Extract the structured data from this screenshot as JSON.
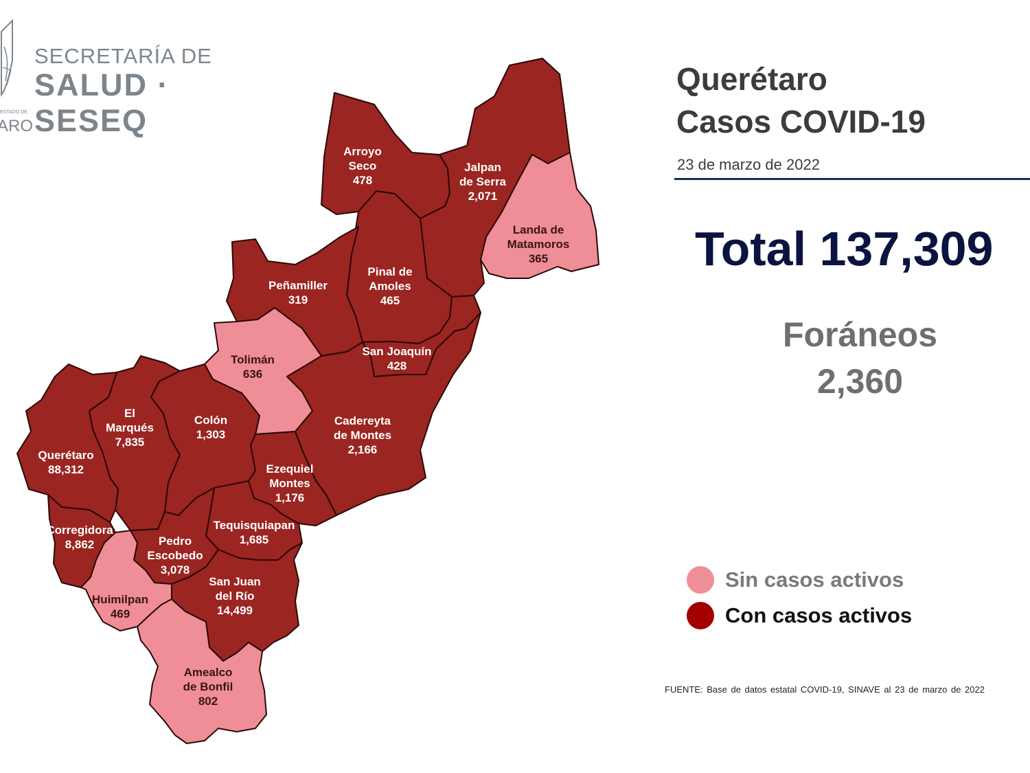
{
  "header": {
    "line1": "SECRETARÍA DE",
    "line2": "SALUD · SESEQ",
    "edo_text": "ESTADO DE",
    "state_fragment": "ARO"
  },
  "title": {
    "line1": "Querétaro",
    "line2": "Casos COVID-19",
    "date": "23 de marzo de 2022"
  },
  "total": "Total 137,309",
  "foraneos": {
    "label": "Foráneos",
    "value": "2,360"
  },
  "legend": {
    "sin": {
      "label": "Sin casos activos",
      "color": "#ef8e96"
    },
    "con": {
      "label": "Con casos activos",
      "color": "#a30000"
    }
  },
  "source": "FUENTE: Base de datos estatal COVID-19, SINAVE al 23 de marzo de 2022",
  "colors": {
    "con_fill": "#9b2521",
    "sin_fill": "#ef8e96",
    "border": "#2a0808"
  },
  "municipalities": [
    {
      "id": "arroyo-seco",
      "name_lines": [
        "Arroyo",
        "Seco"
      ],
      "cases": "478",
      "status": "con"
    },
    {
      "id": "jalpan",
      "name_lines": [
        "Jalpan",
        "de Serra"
      ],
      "cases": "2,071",
      "status": "con"
    },
    {
      "id": "landa",
      "name_lines": [
        "Landa de",
        "Matamoros"
      ],
      "cases": "365",
      "status": "sin"
    },
    {
      "id": "pinal",
      "name_lines": [
        "Pinal de",
        "Amoles"
      ],
      "cases": "465",
      "status": "con"
    },
    {
      "id": "penamiller",
      "name_lines": [
        "Peñamiller"
      ],
      "cases": "319",
      "status": "con"
    },
    {
      "id": "san-joaquin",
      "name_lines": [
        "San Joaquín"
      ],
      "cases": "428",
      "status": "con"
    },
    {
      "id": "toliman",
      "name_lines": [
        "Tolimán"
      ],
      "cases": "636",
      "status": "sin"
    },
    {
      "id": "cadereyta",
      "name_lines": [
        "Cadereyta",
        "de Montes"
      ],
      "cases": "2,166",
      "status": "con"
    },
    {
      "id": "el-marques",
      "name_lines": [
        "El",
        "Marqués"
      ],
      "cases": "7,835",
      "status": "con"
    },
    {
      "id": "colon",
      "name_lines": [
        "Colón"
      ],
      "cases": "1,303",
      "status": "con"
    },
    {
      "id": "queretaro",
      "name_lines": [
        "Querétaro"
      ],
      "cases": "88,312",
      "status": "con"
    },
    {
      "id": "ezequiel",
      "name_lines": [
        "Ezequiel",
        "Montes"
      ],
      "cases": "1,176",
      "status": "con"
    },
    {
      "id": "tequisquiapan",
      "name_lines": [
        "Tequisquiapan"
      ],
      "cases": "1,685",
      "status": "con"
    },
    {
      "id": "corregidora",
      "name_lines": [
        "Corregidora"
      ],
      "cases": "8,862",
      "status": "con"
    },
    {
      "id": "pedro-escobedo",
      "name_lines": [
        "Pedro",
        "Escobedo"
      ],
      "cases": "3,078",
      "status": "con"
    },
    {
      "id": "san-juan",
      "name_lines": [
        "San Juan",
        "del Río"
      ],
      "cases": "14,499",
      "status": "con"
    },
    {
      "id": "huimilpan",
      "name_lines": [
        "Huimilpan"
      ],
      "cases": "469",
      "status": "sin"
    },
    {
      "id": "amealco",
      "name_lines": [
        "Amealco",
        "de Bonfil"
      ],
      "cases": "802",
      "status": "sin"
    }
  ]
}
